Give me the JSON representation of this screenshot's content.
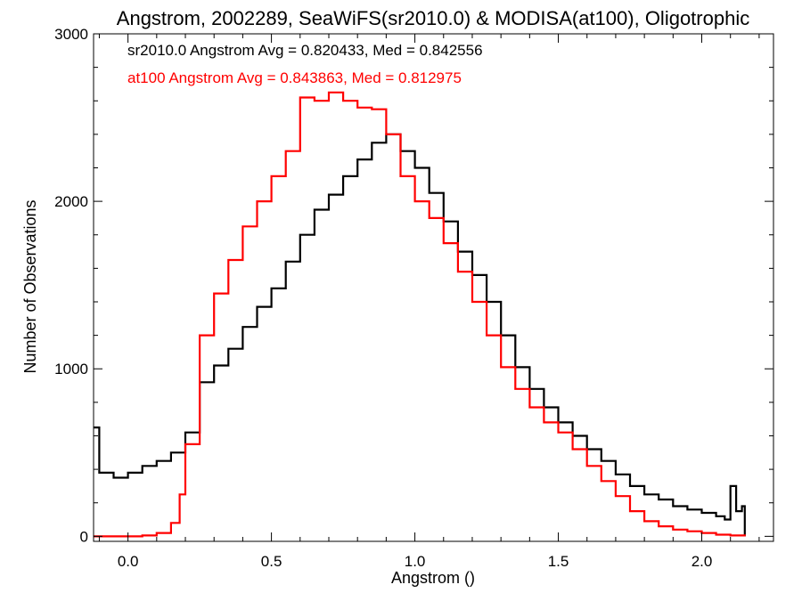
{
  "chart_data": {
    "type": "line",
    "title": "Angstrom, 2002289, SeaWiFS(sr2010.0) & MODISA(at100), Oligotrophic",
    "xlabel": "Angstrom ()",
    "ylabel": "Number of Observations",
    "xlim": [
      -0.12,
      2.25
    ],
    "ylim": [
      -30,
      3000
    ],
    "xticks": [
      0.0,
      0.5,
      1.0,
      1.5,
      2.0
    ],
    "xtick_labels": [
      "0.0",
      "0.5",
      "1.0",
      "1.5",
      "2.0"
    ],
    "yticks": [
      0,
      1000,
      2000,
      3000
    ],
    "ytick_labels": [
      "0",
      "1000",
      "2000",
      "3000"
    ],
    "grid": false,
    "annotations": [
      {
        "text": "sr2010.0 Angstrom Avg = 0.820433, Med = 0.842556",
        "color": "#000000"
      },
      {
        "text": "at100 Angstrom Avg = 0.843863, Med = 0.812975",
        "color": "#ff0000"
      }
    ],
    "series": [
      {
        "color": "#000000",
        "x": [
          -0.12,
          -0.1,
          -0.05,
          0.0,
          0.05,
          0.1,
          0.15,
          0.2,
          0.25,
          0.3,
          0.35,
          0.4,
          0.45,
          0.5,
          0.55,
          0.6,
          0.65,
          0.7,
          0.75,
          0.8,
          0.85,
          0.9,
          0.95,
          1.0,
          1.05,
          1.1,
          1.15,
          1.2,
          1.25,
          1.3,
          1.35,
          1.4,
          1.45,
          1.5,
          1.55,
          1.6,
          1.65,
          1.7,
          1.75,
          1.8,
          1.85,
          1.9,
          1.95,
          2.0,
          2.05,
          2.08,
          2.1,
          2.12,
          2.14,
          2.15
        ],
        "y": [
          650,
          380,
          350,
          380,
          420,
          450,
          500,
          620,
          920,
          1020,
          1120,
          1250,
          1370,
          1480,
          1640,
          1800,
          1950,
          2040,
          2150,
          2250,
          2350,
          2400,
          2300,
          2200,
          2050,
          1880,
          1700,
          1560,
          1400,
          1200,
          1010,
          880,
          770,
          680,
          600,
          520,
          450,
          370,
          300,
          250,
          220,
          180,
          160,
          140,
          120,
          100,
          300,
          150,
          180,
          0
        ]
      },
      {
        "color": "#ff0000",
        "x": [
          -0.12,
          -0.05,
          0.0,
          0.05,
          0.1,
          0.15,
          0.18,
          0.2,
          0.25,
          0.3,
          0.35,
          0.4,
          0.45,
          0.5,
          0.55,
          0.6,
          0.65,
          0.7,
          0.75,
          0.8,
          0.85,
          0.9,
          0.95,
          1.0,
          1.05,
          1.1,
          1.15,
          1.2,
          1.25,
          1.3,
          1.35,
          1.4,
          1.45,
          1.5,
          1.55,
          1.6,
          1.65,
          1.7,
          1.75,
          1.8,
          1.85,
          1.9,
          1.95,
          2.0,
          2.05,
          2.1,
          2.15
        ],
        "y": [
          0,
          0,
          0,
          5,
          20,
          80,
          250,
          550,
          1200,
          1450,
          1650,
          1850,
          2000,
          2150,
          2300,
          2620,
          2600,
          2650,
          2600,
          2560,
          2550,
          2400,
          2150,
          2000,
          1900,
          1750,
          1580,
          1400,
          1200,
          1010,
          880,
          770,
          680,
          620,
          520,
          420,
          330,
          240,
          150,
          90,
          60,
          40,
          30,
          20,
          10,
          5,
          0
        ]
      }
    ]
  }
}
